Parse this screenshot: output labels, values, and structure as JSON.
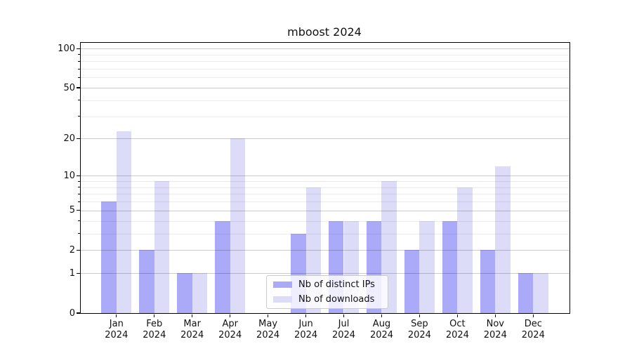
{
  "chart_data": {
    "type": "bar",
    "title": "mboost 2024",
    "categories": [
      "Jan 2024",
      "Feb 2024",
      "Mar 2024",
      "Apr 2024",
      "May 2024",
      "Jun 2024",
      "Jul 2024",
      "Aug 2024",
      "Sep 2024",
      "Oct 2024",
      "Nov 2024",
      "Dec 2024"
    ],
    "series": [
      {
        "name": "Nb of distinct IPs",
        "color": "#aaaaf8",
        "values": [
          6,
          2,
          1,
          4,
          0,
          3,
          4,
          4,
          2,
          4,
          2,
          1
        ]
      },
      {
        "name": "Nb of downloads",
        "color": "#dcdcf8",
        "values": [
          23,
          9,
          1,
          20,
          0,
          8,
          4,
          9,
          4,
          8,
          12,
          1
        ]
      }
    ],
    "yscale": "log1p",
    "ylim": [
      0,
      110
    ],
    "yticks": [
      0,
      1,
      2,
      5,
      10,
      20,
      50,
      100
    ],
    "yticks_minor": [
      3,
      4,
      6,
      7,
      8,
      9,
      30,
      40,
      60,
      70,
      80,
      90
    ],
    "grid": true,
    "legend_position": "lower center inside plot",
    "axis_color": "#000000",
    "background": "#ffffff"
  }
}
